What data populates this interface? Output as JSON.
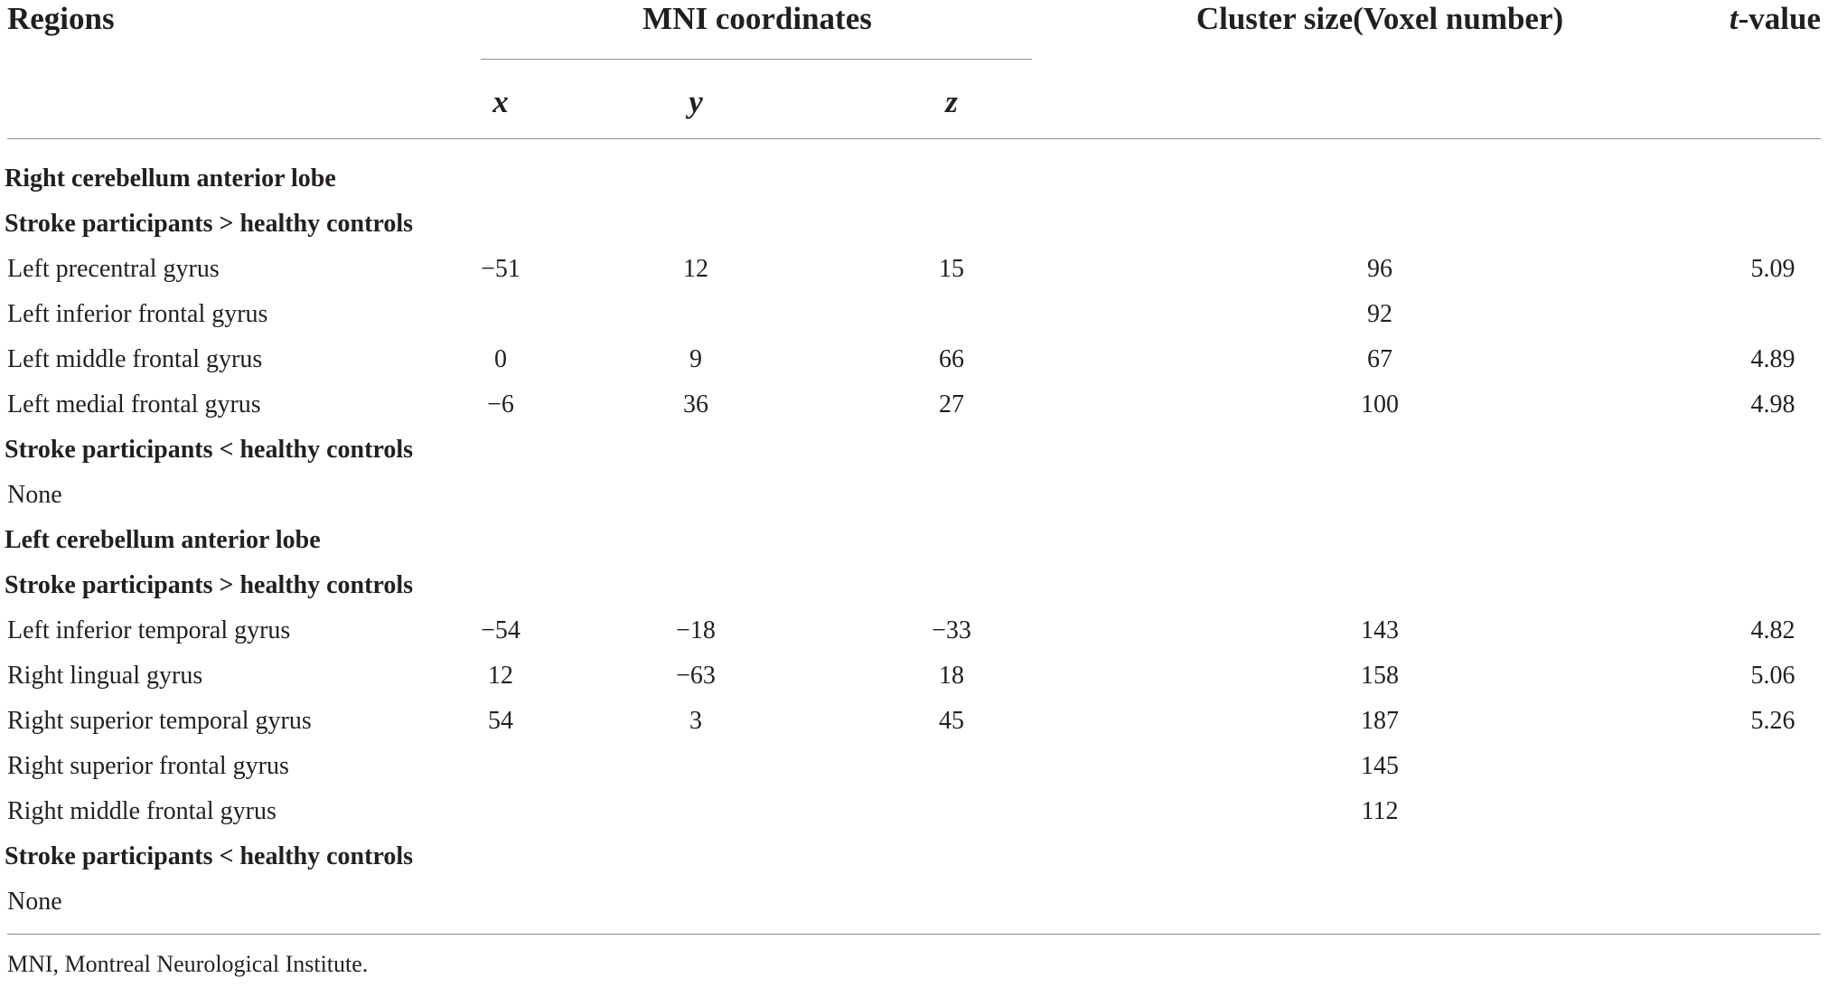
{
  "header": {
    "regions": "Regions",
    "mni": "MNI coordinates",
    "cluster": "Cluster size(Voxel number)",
    "t_value_t": "t",
    "t_value_rest": "-value",
    "x": "x",
    "y": "y",
    "z": "z"
  },
  "rows": [
    {
      "type": "section",
      "label": "Right cerebellum anterior lobe"
    },
    {
      "type": "section",
      "label": "Stroke participants > healthy controls"
    },
    {
      "type": "data",
      "label": "Left precentral gyrus",
      "x": "−51",
      "y": "12",
      "z": "15",
      "size": "96",
      "t": "5.09"
    },
    {
      "type": "data",
      "label": "Left inferior frontal gyrus",
      "x": "",
      "y": "",
      "z": "",
      "size": "92",
      "t": ""
    },
    {
      "type": "data",
      "label": "Left middle frontal gyrus",
      "x": "0",
      "y": "9",
      "z": "66",
      "size": "67",
      "t": "4.89"
    },
    {
      "type": "data",
      "label": "Left medial frontal gyrus",
      "x": "−6",
      "y": "36",
      "z": "27",
      "size": "100",
      "t": "4.98"
    },
    {
      "type": "section",
      "label": "Stroke participants < healthy controls"
    },
    {
      "type": "data",
      "label": "None",
      "x": "",
      "y": "",
      "z": "",
      "size": "",
      "t": ""
    },
    {
      "type": "section",
      "label": "Left cerebellum anterior lobe"
    },
    {
      "type": "section",
      "label": "Stroke participants > healthy controls"
    },
    {
      "type": "data",
      "label": "Left inferior temporal gyrus",
      "x": "−54",
      "y": "−18",
      "z": "−33",
      "size": "143",
      "t": "4.82"
    },
    {
      "type": "data",
      "label": "Right lingual gyrus",
      "x": "12",
      "y": "−63",
      "z": "18",
      "size": "158",
      "t": "5.06"
    },
    {
      "type": "data",
      "label": "Right superior temporal gyrus",
      "x": "54",
      "y": "3",
      "z": "45",
      "size": "187",
      "t": "5.26"
    },
    {
      "type": "data",
      "label": "Right superior frontal gyrus",
      "x": "",
      "y": "",
      "z": "",
      "size": "145",
      "t": ""
    },
    {
      "type": "data",
      "label": "Right middle frontal gyrus",
      "x": "",
      "y": "",
      "z": "",
      "size": "112",
      "t": ""
    },
    {
      "type": "section",
      "label": "Stroke participants < healthy controls"
    },
    {
      "type": "data",
      "label": "None",
      "x": "",
      "y": "",
      "z": "",
      "size": "",
      "t": ""
    }
  ],
  "footnote": "MNI, Montreal Neurological Institute."
}
